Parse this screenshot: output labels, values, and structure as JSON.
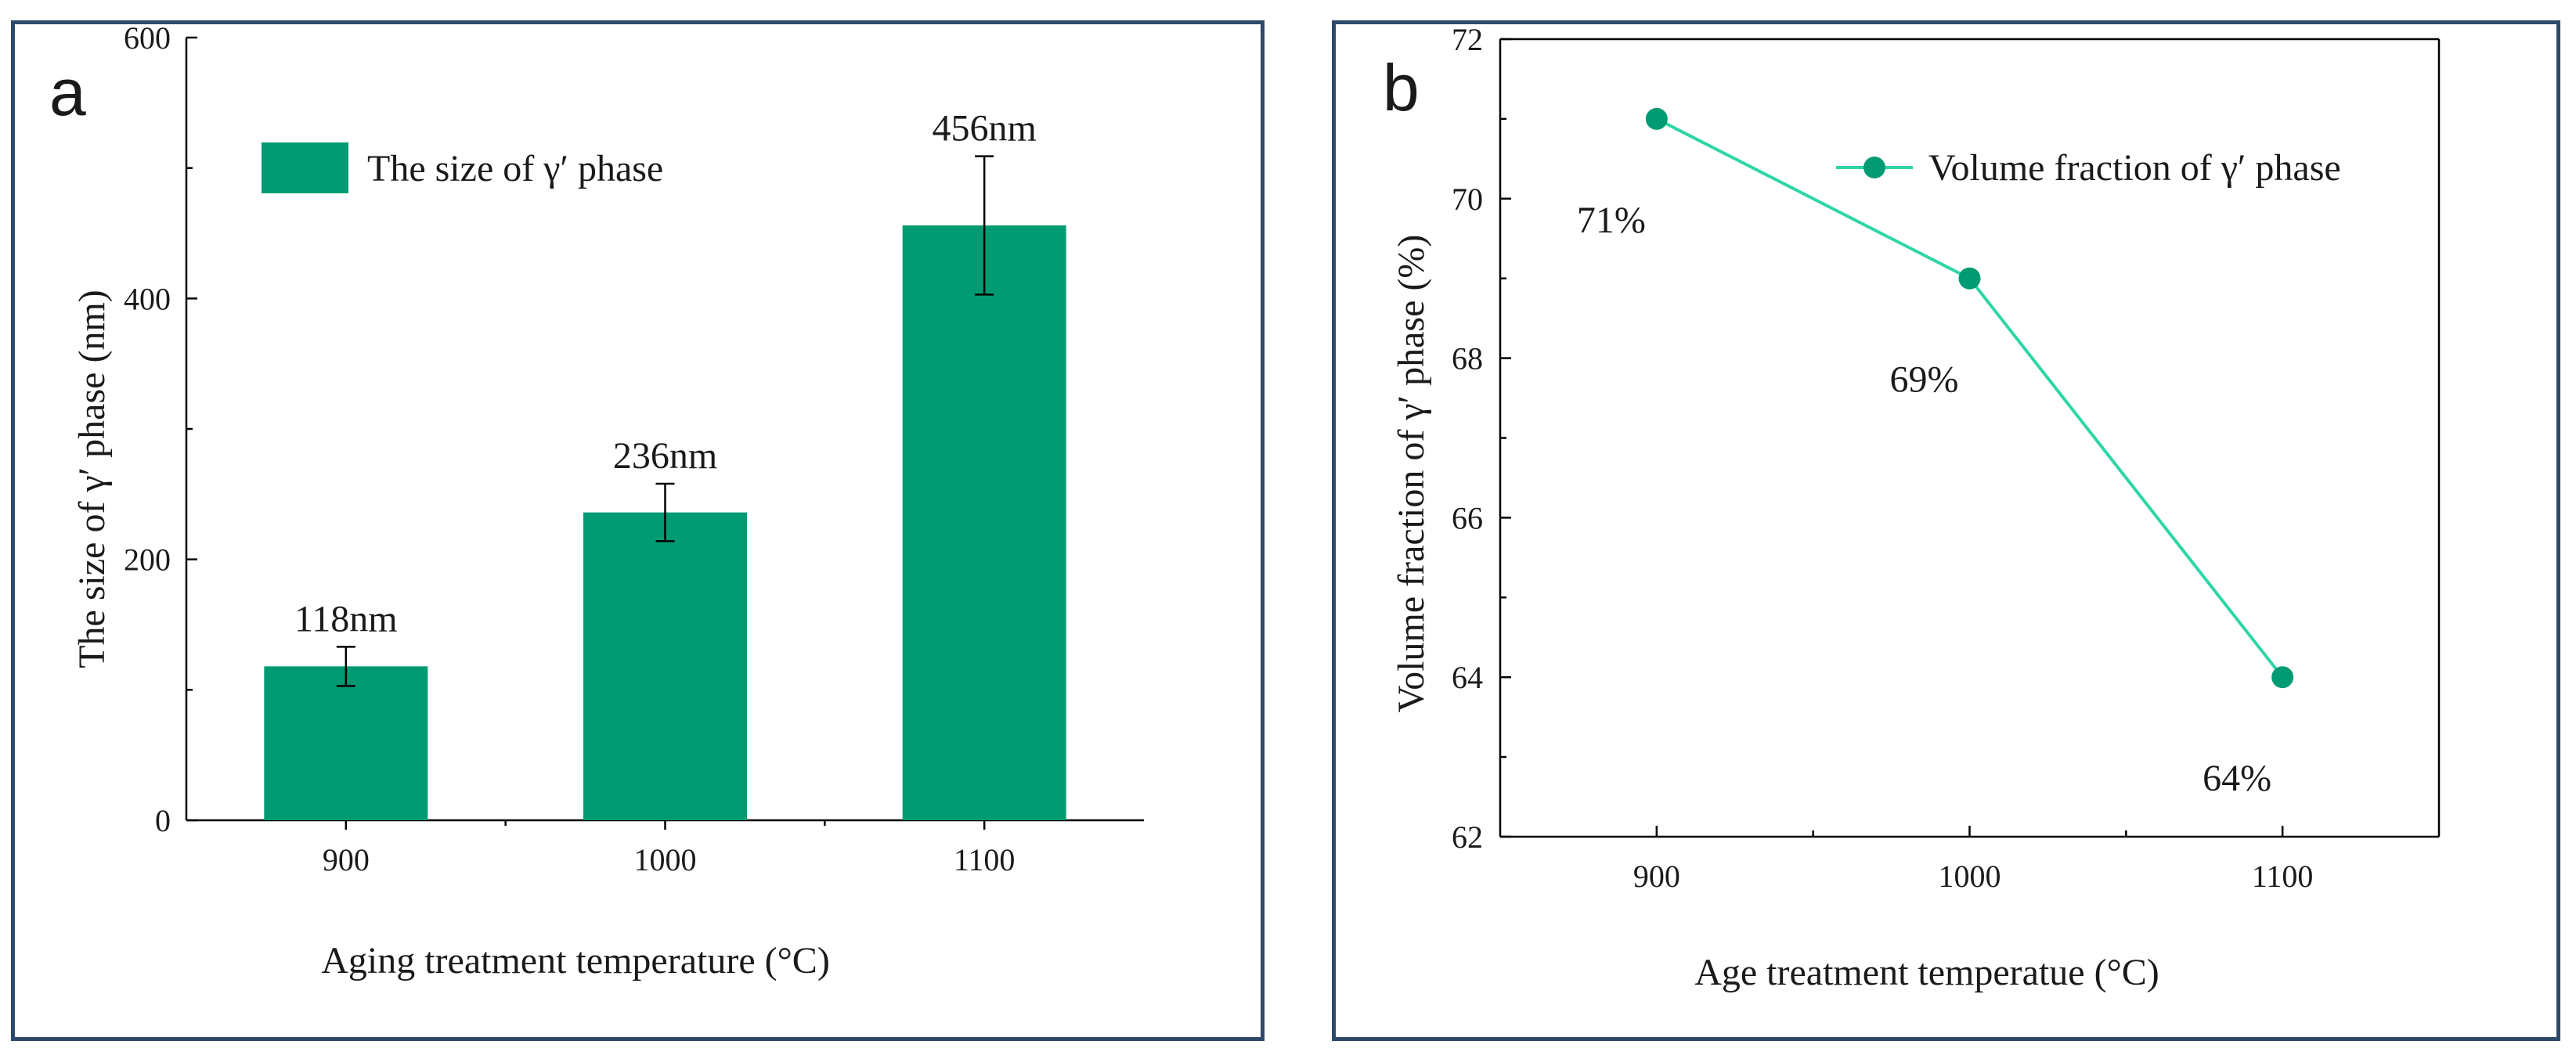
{
  "chart_data": [
    {
      "type": "bar",
      "panel_label": "a",
      "categories": [
        "900",
        "1000",
        "1100"
      ],
      "series": [
        {
          "name": "The size of γ′ phase",
          "values": [
            118,
            236,
            456
          ],
          "error": [
            15,
            22,
            53
          ],
          "data_labels": [
            "118nm",
            "236nm",
            "456nm"
          ]
        }
      ],
      "xlabel": "Aging treatment temperature (°C)",
      "ylabel": "The size of γ′ phase (nm)",
      "ylim": [
        0,
        600
      ],
      "yticks": [
        0,
        200,
        400,
        600
      ],
      "grid": false,
      "legend_position": "top-left",
      "color": "#009b72"
    },
    {
      "type": "line",
      "panel_label": "b",
      "x": [
        900,
        1000,
        1100
      ],
      "series": [
        {
          "name": "Volume fraction of γ′ phase",
          "values": [
            71,
            69,
            64
          ],
          "data_labels": [
            "71%",
            "69%",
            "64%"
          ]
        }
      ],
      "xlabel": "Age treatment temperatue (°C)",
      "ylabel": "Volume fraction of γ′ phase (%)",
      "xlim": [
        850,
        1150
      ],
      "xticks": [
        900,
        1000,
        1100
      ],
      "ylim": [
        62,
        72
      ],
      "yticks": [
        62,
        64,
        66,
        68,
        70,
        72
      ],
      "grid": false,
      "legend_position": "top-right",
      "line_color": "#2ed6a6",
      "marker_color": "#009b72"
    }
  ]
}
